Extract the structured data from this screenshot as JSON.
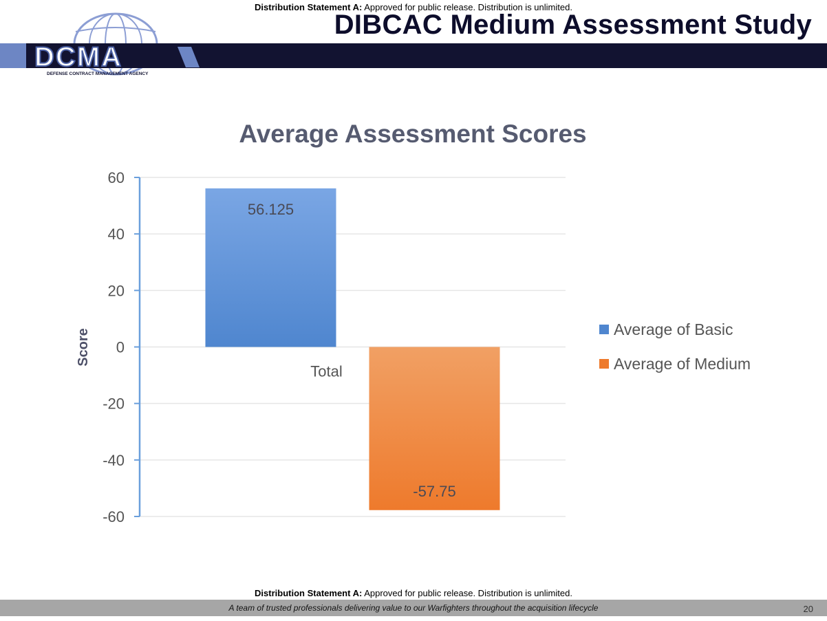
{
  "header": {
    "distribution_label": "Distribution Statement A:",
    "distribution_text": " Approved for public release. Distribution is unlimited.",
    "title": "DIBCAC Medium Assessment Study",
    "logo_text": "DCMA",
    "logo_subtitle": "DEFENSE CONTRACT MANAGEMENT AGENCY"
  },
  "footer": {
    "distribution_label": "Distribution Statement A:",
    "distribution_text": " Approved for public release. Distribution is unlimited.",
    "tagline": "A team of trusted professionals delivering value to our Warfighters throughout the acquisition lifecycle",
    "page_number": "20"
  },
  "colors": {
    "basic_top": "#7aa6e4",
    "basic_bottom": "#4f86cf",
    "medium_top": "#f1a064",
    "medium_bottom": "#ee7a2c",
    "axis": "#6a9fdc",
    "grid": "#e6e6e6"
  },
  "chart_data": {
    "type": "bar",
    "title": "Average Assessment Scores",
    "ylabel": "Score",
    "xlabel": "",
    "categories": [
      "Total"
    ],
    "series": [
      {
        "name": "Average of Basic",
        "values": [
          56.125
        ],
        "label": "56.125"
      },
      {
        "name": "Average of Medium",
        "values": [
          -57.75
        ],
        "label": "-57.75"
      }
    ],
    "ylim": [
      -60,
      60
    ],
    "yticks": [
      60,
      40,
      20,
      0,
      -20,
      -40,
      -60
    ],
    "ytick_labels": [
      "60",
      "40",
      "20",
      "0",
      "-20",
      "-40",
      "-60"
    ],
    "grid": true,
    "legend_position": "right"
  }
}
